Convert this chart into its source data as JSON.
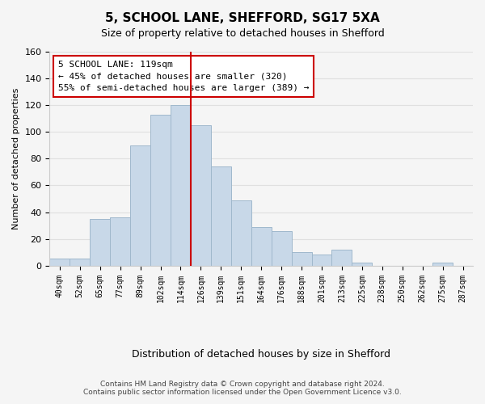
{
  "title": "5, SCHOOL LANE, SHEFFORD, SG17 5XA",
  "subtitle": "Size of property relative to detached houses in Shefford",
  "xlabel": "Distribution of detached houses by size in Shefford",
  "ylabel": "Number of detached properties",
  "footer_line1": "Contains HM Land Registry data © Crown copyright and database right 2024.",
  "footer_line2": "Contains public sector information licensed under the Open Government Licence v3.0.",
  "bin_labels": [
    "40sqm",
    "52sqm",
    "65sqm",
    "77sqm",
    "89sqm",
    "102sqm",
    "114sqm",
    "126sqm",
    "139sqm",
    "151sqm",
    "164sqm",
    "176sqm",
    "188sqm",
    "201sqm",
    "213sqm",
    "225sqm",
    "238sqm",
    "250sqm",
    "262sqm",
    "275sqm",
    "287sqm"
  ],
  "bar_values": [
    5,
    5,
    35,
    36,
    90,
    113,
    120,
    105,
    74,
    49,
    29,
    26,
    10,
    8,
    12,
    2,
    0,
    0,
    0,
    2,
    0
  ],
  "bar_color": "#c8d8e8",
  "bar_edge_color": "#a0b8cc",
  "vline_x": 6.5,
  "vline_color": "#cc0000",
  "annotation_title": "5 SCHOOL LANE: 119sqm",
  "annotation_line1": "← 45% of detached houses are smaller (320)",
  "annotation_line2": "55% of semi-detached houses are larger (389) →",
  "annotation_box_color": "#ffffff",
  "annotation_box_edge": "#cc0000",
  "ylim": [
    0,
    160
  ],
  "yticks": [
    0,
    20,
    40,
    60,
    80,
    100,
    120,
    140,
    160
  ],
  "grid_color": "#e0e0e0",
  "bg_color": "#f5f5f5"
}
